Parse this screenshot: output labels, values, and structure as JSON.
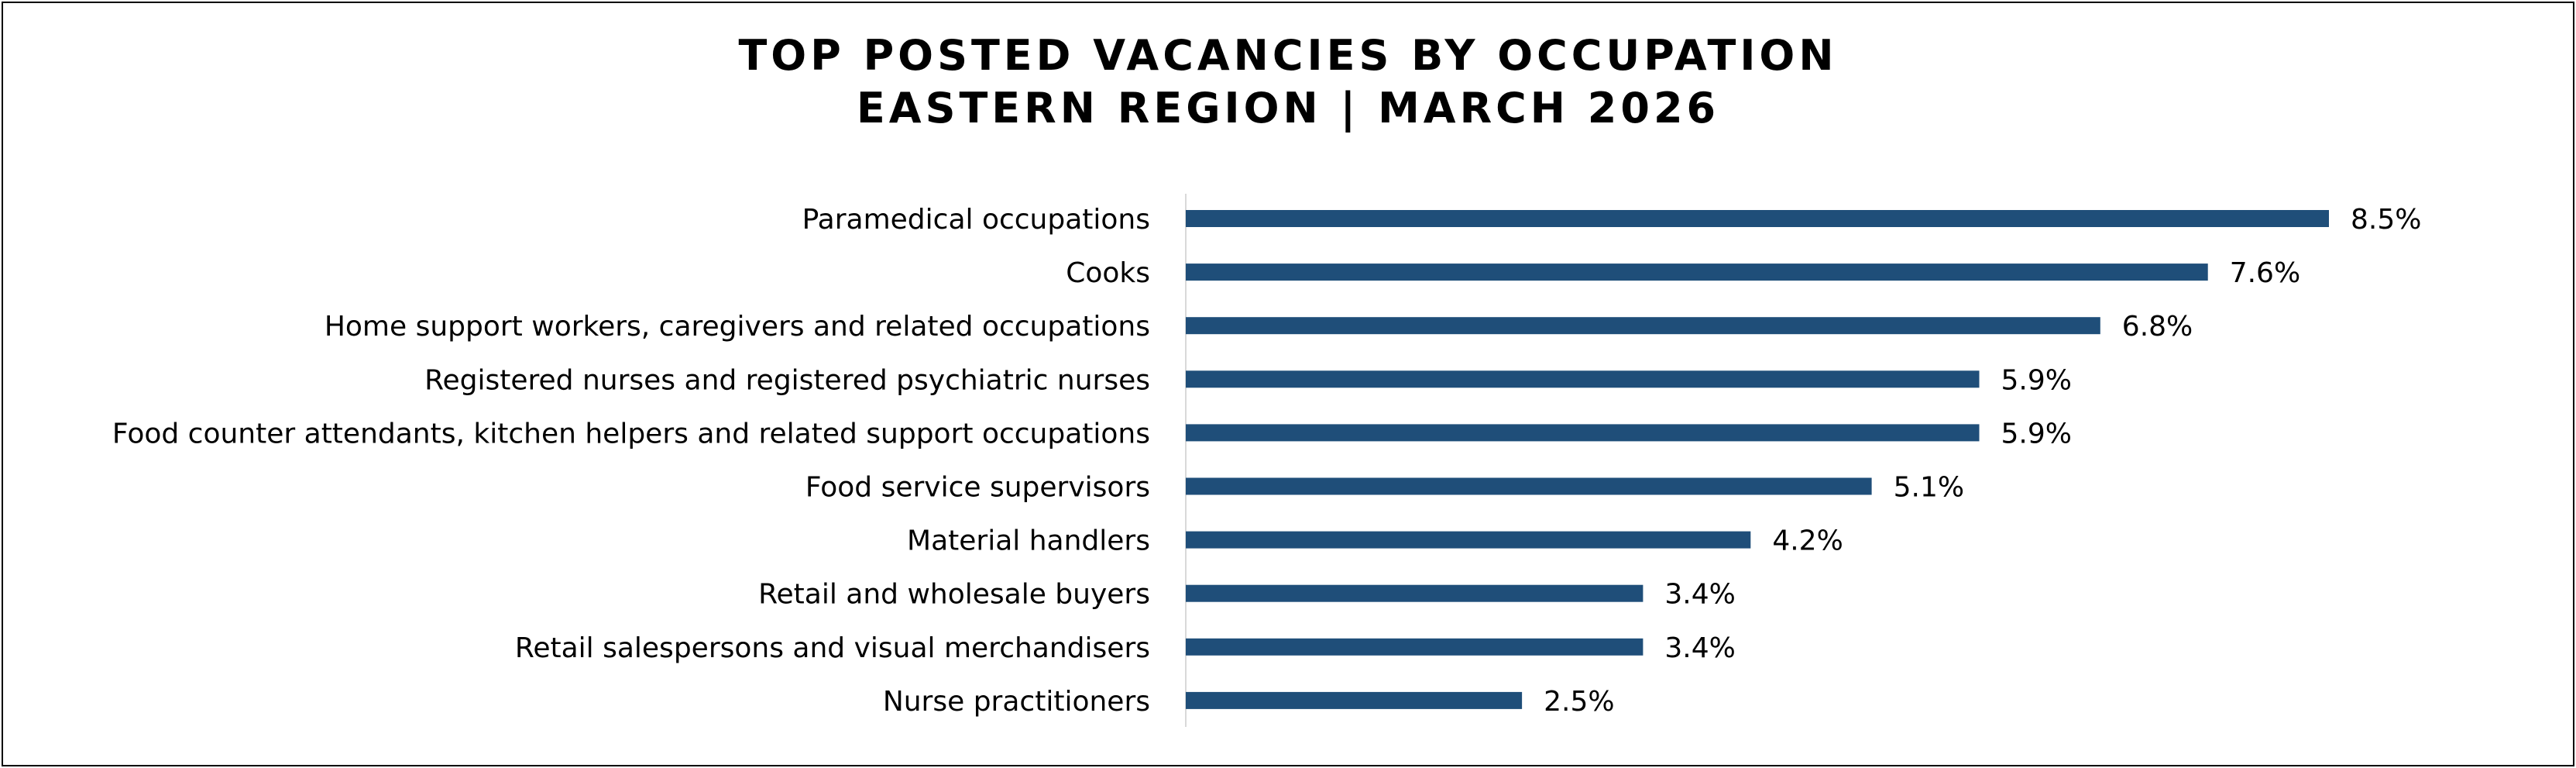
{
  "chart_data": {
    "type": "bar",
    "orientation": "horizontal",
    "title": "TOP POSTED VACANCIES BY OCCUPATION",
    "subtitle": "EASTERN REGION | MARCH 2026",
    "categories": [
      "Paramedical occupations",
      "Cooks",
      "Home support workers, caregivers and related occupations",
      "Registered nurses and registered psychiatric nurses",
      "Food counter attendants, kitchen helpers and related support occupations",
      "Food service supervisors",
      "Material handlers",
      "Retail and wholesale buyers",
      "Retail salespersons and visual merchandisers",
      "Nurse practitioners"
    ],
    "values": [
      8.5,
      7.6,
      6.8,
      5.9,
      5.9,
      5.1,
      4.2,
      3.4,
      3.4,
      2.5
    ],
    "value_labels": [
      "8.5%",
      "7.6%",
      "6.8%",
      "5.9%",
      "5.9%",
      "5.1%",
      "4.2%",
      "3.4%",
      "3.4%",
      "2.5%"
    ],
    "xlim": [
      0,
      8.5
    ],
    "grid": false,
    "legend": "none",
    "bar_color": "#1F4E79",
    "axis_color": "#D9D9D9"
  }
}
